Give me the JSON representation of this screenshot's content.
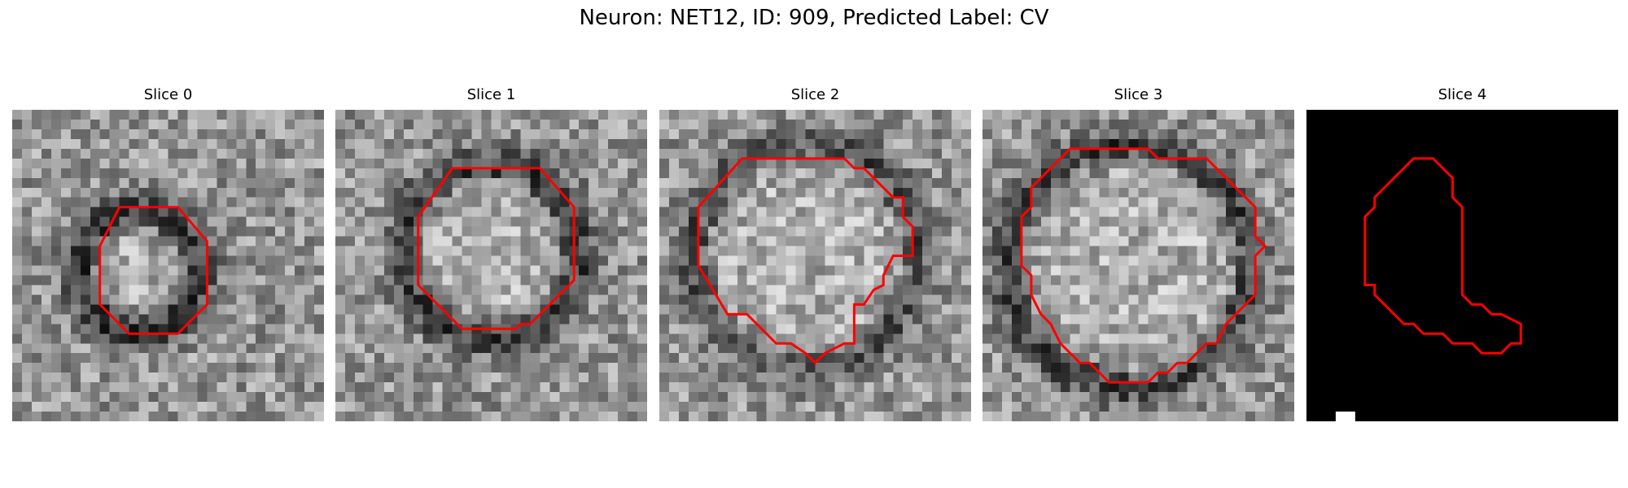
{
  "figure": {
    "title": "Neuron: NET12, ID: 909, Predicted Label: CV"
  },
  "panels": [
    {
      "title": "Slice 0",
      "image": "grayscale-em-patch",
      "contour": "octagon",
      "contour_color": "#ff0000"
    },
    {
      "title": "Slice 1",
      "image": "grayscale-em-patch",
      "contour": "octagon",
      "contour_color": "#ff0000"
    },
    {
      "title": "Slice 2",
      "image": "grayscale-em-patch",
      "contour": "irregular",
      "contour_color": "#ff0000"
    },
    {
      "title": "Slice 3",
      "image": "grayscale-em-patch",
      "contour": "irregular",
      "contour_color": "#ff0000"
    },
    {
      "title": "Slice 4",
      "image": "black-mask",
      "contour": "irregular",
      "contour_color": "#ff0000"
    }
  ]
}
